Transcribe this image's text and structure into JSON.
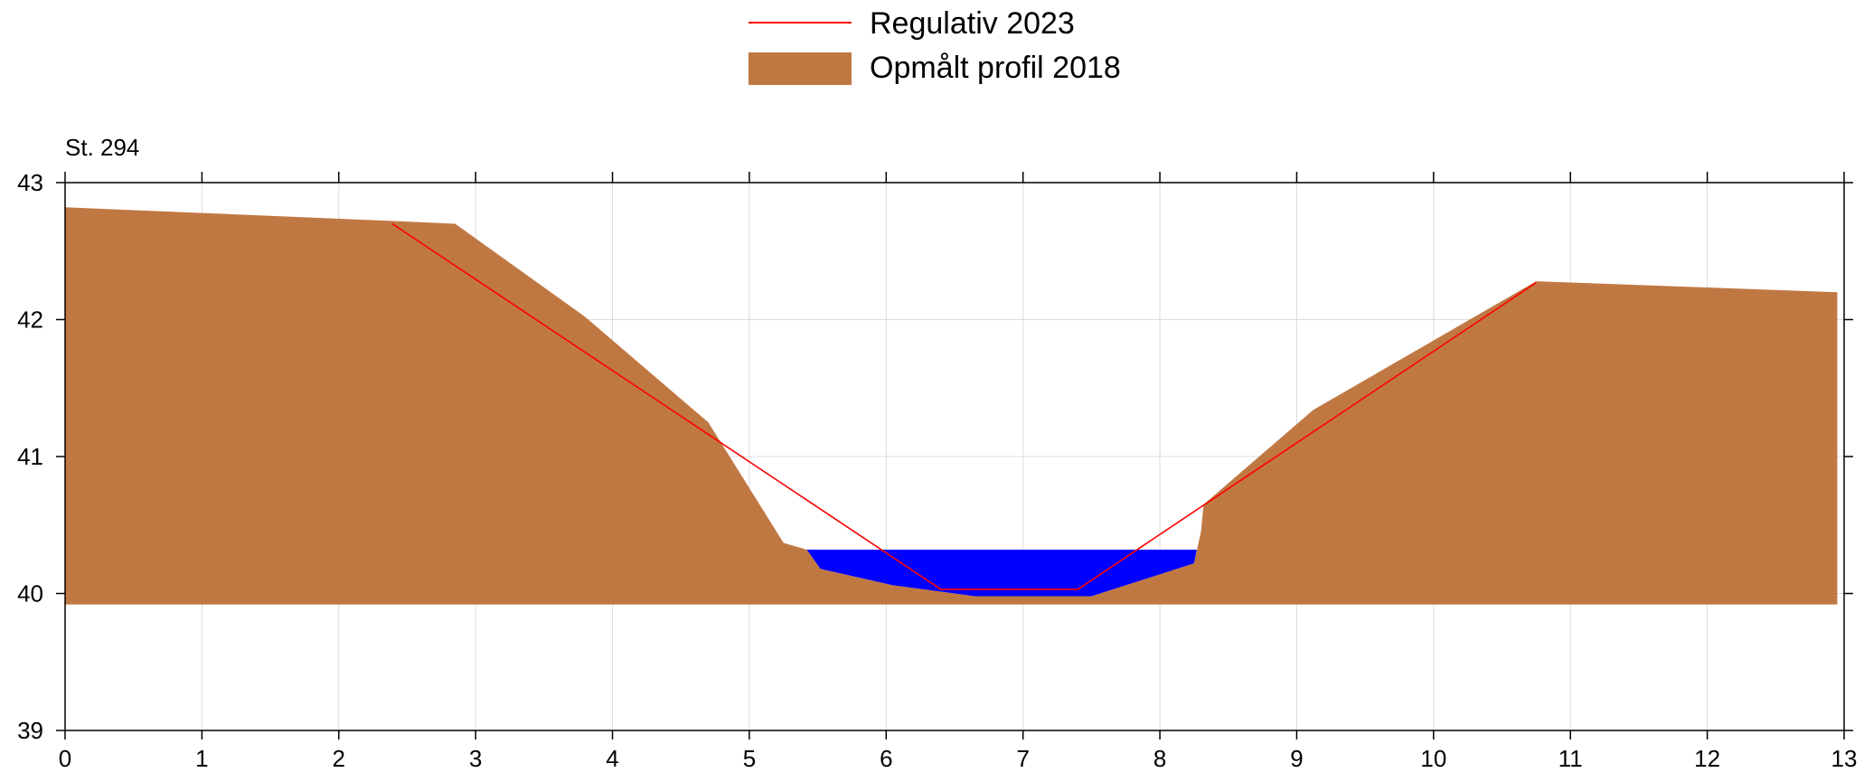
{
  "chart_data": {
    "type": "area",
    "station_label": "St. 294",
    "xlim": [
      0,
      13
    ],
    "ylim": [
      39,
      43
    ],
    "x_ticks": [
      0,
      1,
      2,
      3,
      4,
      5,
      6,
      7,
      8,
      9,
      10,
      11,
      12,
      13
    ],
    "y_ticks": [
      39,
      40,
      41,
      42,
      43
    ],
    "grid": true,
    "legend_position": "top-center",
    "series": [
      {
        "name": "Regulativ 2023",
        "kind": "line",
        "color": "#ff0000",
        "x": [
          2.39,
          6.4,
          7.4,
          10.75
        ],
        "y": [
          42.7,
          40.03,
          40.03,
          42.27
        ]
      },
      {
        "name": "Opmålt profil 2018",
        "kind": "area",
        "color": "#c07843",
        "base": 39.92,
        "x": [
          0,
          2.39,
          2.85,
          3.8,
          4.7,
          5.25,
          5.42,
          5.52,
          6.05,
          6.65,
          7.5,
          8.25,
          8.3,
          8.32,
          9.12,
          10.75,
          12.95
        ],
        "y": [
          42.82,
          42.72,
          42.7,
          42.02,
          41.25,
          40.37,
          40.32,
          40.18,
          40.06,
          39.98,
          39.98,
          40.22,
          40.45,
          40.65,
          41.34,
          42.28,
          42.2
        ]
      },
      {
        "kind": "water",
        "color": "#0000ff",
        "x": [
          5.42,
          5.52,
          6.05,
          6.65,
          7.5,
          8.25,
          8.27
        ],
        "y": [
          40.32,
          40.18,
          40.06,
          39.98,
          39.98,
          40.22,
          40.32
        ]
      }
    ]
  }
}
